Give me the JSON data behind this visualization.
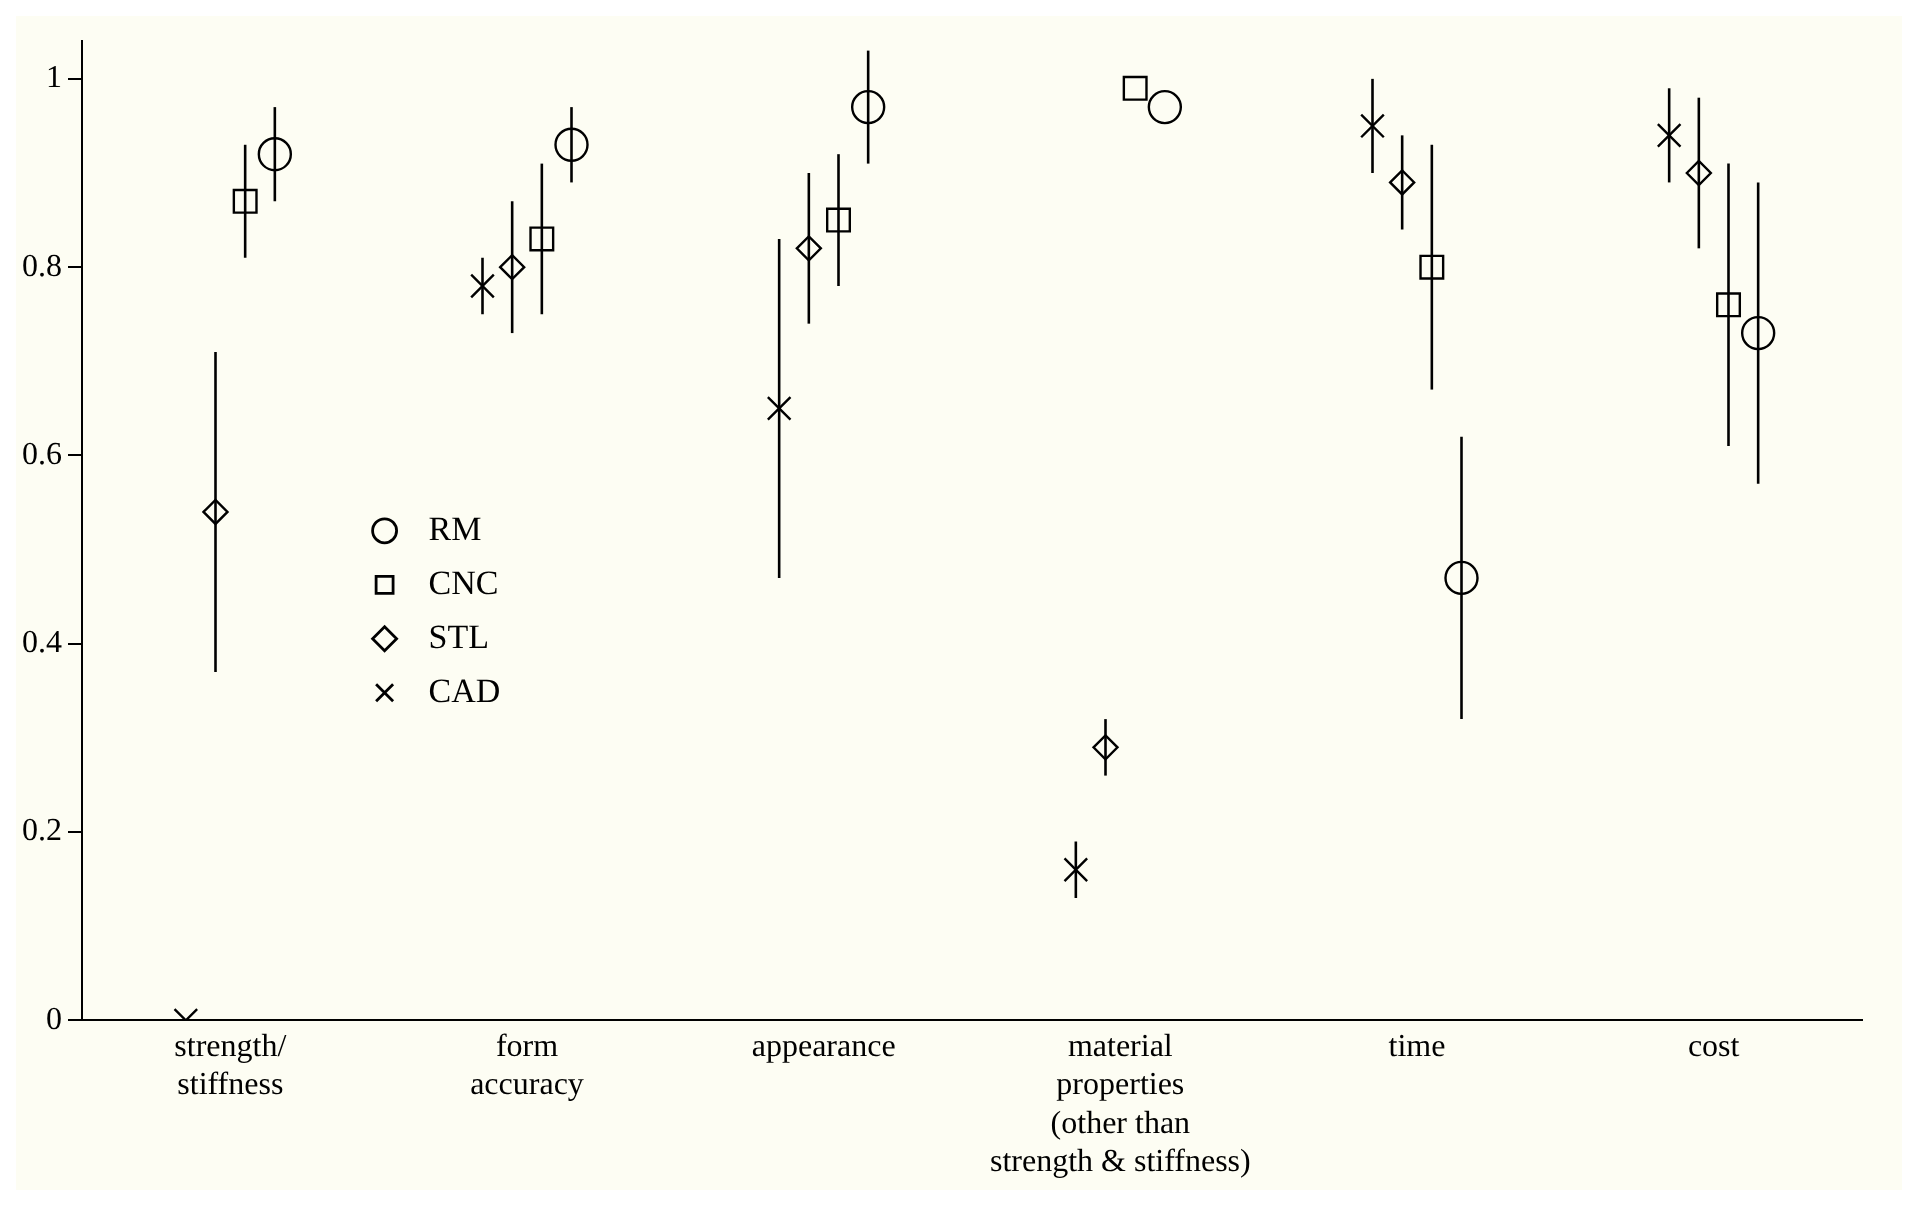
{
  "chart_data": {
    "type": "scatter",
    "categories": [
      "strength/\nstiffness",
      "form\naccuracy",
      "appearance",
      "material\nproperties\n(other than\nstrength & stiffness)",
      "time",
      "cost"
    ],
    "series": [
      {
        "name": "RM",
        "color": "#000000",
        "marker": "circle",
        "values": [
          0.92,
          0.93,
          0.97,
          0.97,
          0.47,
          0.73
        ],
        "errors": [
          [
            0.87,
            0.97
          ],
          [
            0.89,
            0.97
          ],
          [
            0.91,
            1.03
          ],
          null,
          [
            0.32,
            0.62
          ],
          [
            0.57,
            0.89
          ]
        ]
      },
      {
        "name": "CNC",
        "color": "#000000",
        "marker": "square",
        "values": [
          0.87,
          0.83,
          0.85,
          0.99,
          0.8,
          0.76
        ],
        "errors": [
          [
            0.81,
            0.93
          ],
          [
            0.75,
            0.91
          ],
          [
            0.78,
            0.92
          ],
          null,
          [
            0.67,
            0.93
          ],
          [
            0.61,
            0.91
          ]
        ]
      },
      {
        "name": "STL",
        "color": "#000000",
        "marker": "diamond",
        "values": [
          0.54,
          0.8,
          0.82,
          0.29,
          0.89,
          0.9
        ],
        "errors": [
          [
            0.37,
            0.71
          ],
          [
            0.73,
            0.87
          ],
          [
            0.74,
            0.9
          ],
          [
            0.26,
            0.32
          ],
          [
            0.84,
            0.94
          ],
          [
            0.82,
            0.98
          ]
        ]
      },
      {
        "name": "CAD",
        "color": "#000000",
        "marker": "cross",
        "values": [
          0,
          0.78,
          0.65,
          0.16,
          0.95,
          0.94
        ],
        "errors": [
          null,
          [
            0.75,
            0.81
          ],
          [
            0.47,
            0.83
          ],
          [
            0.13,
            0.19
          ],
          [
            0.9,
            1.0
          ],
          [
            0.89,
            0.99
          ]
        ]
      }
    ],
    "ylim": [
      0,
      1.04
    ],
    "yticks": [
      0,
      0.2,
      0.4,
      0.6,
      0.8,
      1
    ],
    "grid": false,
    "legend": "left"
  }
}
